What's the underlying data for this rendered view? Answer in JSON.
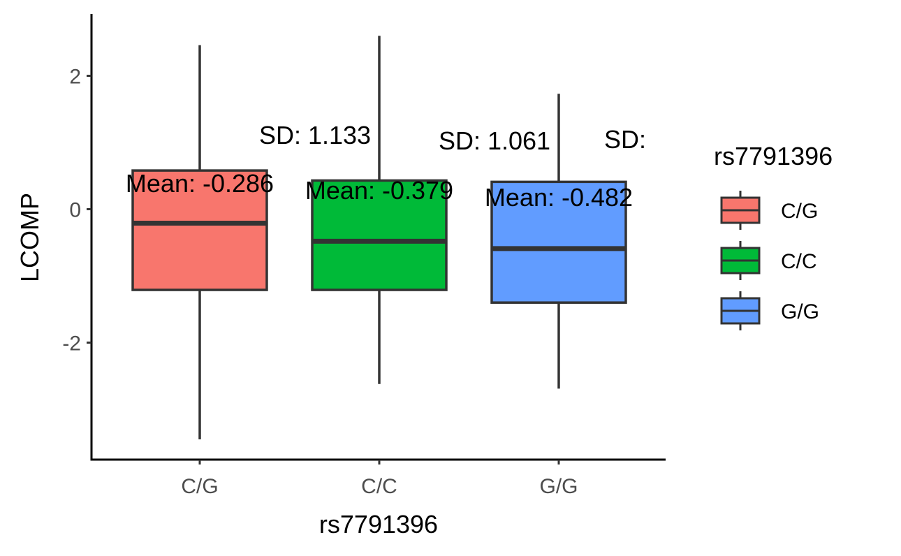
{
  "chart_data": {
    "type": "box",
    "xlabel": "rs7791396",
    "ylabel": "LCOMP",
    "ylim": [
      -3.7,
      2.9
    ],
    "yticks": [
      -2,
      0,
      2
    ],
    "ytick_labels": [
      "-2",
      "0",
      "2"
    ],
    "grid": false,
    "legend": {
      "title": "rs7791396",
      "position": "right",
      "entries": [
        "C/G",
        "C/C",
        "G/G"
      ]
    },
    "categories": [
      "C/G",
      "C/C",
      "G/G"
    ],
    "colors": [
      "#F8766D",
      "#00BA38",
      "#619CFF"
    ],
    "boxes": [
      {
        "category": "C/G",
        "whisker_low": -3.45,
        "q1": -1.21,
        "median": -0.21,
        "q3": 0.58,
        "whisker_high": 2.46
      },
      {
        "category": "C/C",
        "whisker_low": -2.62,
        "q1": -1.21,
        "median": -0.48,
        "q3": 0.43,
        "whisker_high": 2.6
      },
      {
        "category": "G/G",
        "whisker_low": -2.69,
        "q1": -1.4,
        "median": -0.59,
        "q3": 0.41,
        "whisker_high": 1.73
      }
    ],
    "annotations": [
      {
        "category": "C/G",
        "mean_text": "Mean:  -0.286",
        "sd_text": "SD:  1.133"
      },
      {
        "category": "C/C",
        "mean_text": "Mean:  -0.379",
        "sd_text": "SD:  1.061"
      },
      {
        "category": "G/G",
        "mean_text": "Mean:  -0.482",
        "sd_text": "SD:"
      }
    ]
  }
}
